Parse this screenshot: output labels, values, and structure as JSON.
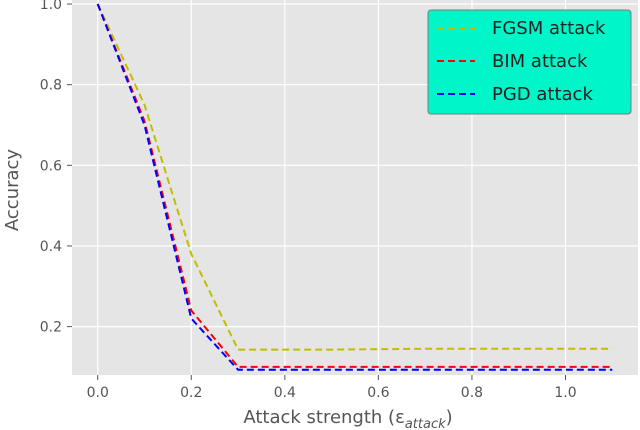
{
  "chart_data": {
    "type": "line",
    "title": "",
    "xlabel": "Attack strength (ε",
    "xlabel_subscript": "attack",
    "xlabel_suffix": ")",
    "ylabel": "Accuracy",
    "xlim": [
      -0.055,
      1.155
    ],
    "ylim": [
      0.08,
      1.01
    ],
    "xticks": [
      0.0,
      0.2,
      0.4,
      0.6,
      0.8,
      1.0
    ],
    "xtick_labels": [
      "0.0",
      "0.2",
      "0.4",
      "0.6",
      "0.8",
      "1.0"
    ],
    "yticks": [
      0.2,
      0.4,
      0.6,
      0.8,
      1.0
    ],
    "ytick_labels": [
      "0.2",
      "0.4",
      "0.6",
      "0.8",
      "1.0"
    ],
    "grid": true,
    "legend_position": "top-right",
    "legend_background": "#00f5c8",
    "plot_background": "#e5e5e5",
    "x": [
      0.0,
      0.1,
      0.2,
      0.3,
      0.5,
      0.7,
      0.9,
      1.1
    ],
    "series": [
      {
        "name": "FGSM attack",
        "color": "#bfbf00",
        "values": [
          1.0,
          0.75,
          0.38,
          0.143,
          0.143,
          0.145,
          0.145,
          0.145
        ]
      },
      {
        "name": "BIM attack",
        "color": "#ff0000",
        "values": [
          1.0,
          0.71,
          0.24,
          0.1,
          0.1,
          0.1,
          0.1,
          0.1
        ]
      },
      {
        "name": "PGD attack",
        "color": "#0000ff",
        "values": [
          1.0,
          0.7,
          0.22,
          0.093,
          0.093,
          0.093,
          0.093,
          0.093
        ]
      }
    ]
  }
}
